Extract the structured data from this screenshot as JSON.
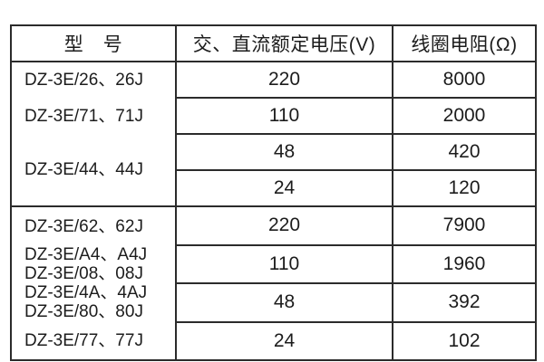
{
  "table": {
    "headers": {
      "model": "型　号",
      "voltage": "交、直流额定电压(V)",
      "resistance": "线圈电阻(Ω)"
    },
    "sections": [
      {
        "models": [
          "DZ-3E/26、26J",
          "DZ-3E/71、71J",
          "DZ-3E/44、44J"
        ],
        "rows": [
          {
            "voltage": "220",
            "resistance": "8000"
          },
          {
            "voltage": "110",
            "resistance": "2000"
          },
          {
            "voltage": "48",
            "resistance": "420"
          },
          {
            "voltage": "24",
            "resistance": "120"
          }
        ]
      },
      {
        "models": [
          "DZ-3E/62、62J",
          "DZ-3E/A4、A4J",
          "DZ-3E/08、08J",
          "DZ-3E/4A、4AJ",
          "DZ-3E/80、80J",
          "DZ-3E/77、77J"
        ],
        "rows": [
          {
            "voltage": "220",
            "resistance": "7900"
          },
          {
            "voltage": "110",
            "resistance": "1960"
          },
          {
            "voltage": "48",
            "resistance": "392"
          },
          {
            "voltage": "24",
            "resistance": "102"
          }
        ]
      }
    ]
  },
  "colors": {
    "border": "#2b2b2b",
    "text": "#1c1c1c",
    "background": "#ffffff"
  }
}
